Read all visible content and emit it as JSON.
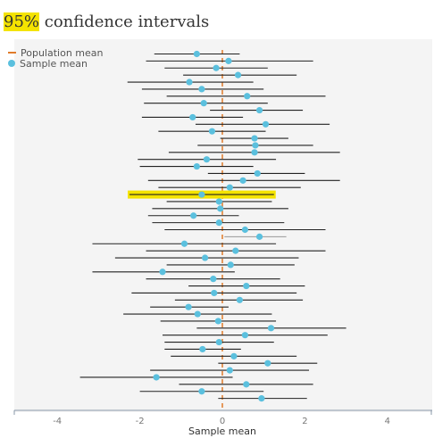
{
  "title": {
    "highlight": "95%",
    "rest": " confidence intervals"
  },
  "legend": {
    "population_mean": "Population mean",
    "sample_mean": "Sample mean"
  },
  "colors": {
    "population_mean": "#e07b2a",
    "sample_mean": "#5bc0de",
    "highlight": "#f4e300",
    "ci_covering": "#222222",
    "ci_missing": "#999999"
  },
  "chart_data": {
    "type": "scatter",
    "title": "95% confidence intervals",
    "xlabel": "Sample mean",
    "ylabel": "",
    "xlim": [
      -5,
      5
    ],
    "xticks": [
      -4,
      -2,
      0,
      2,
      4
    ],
    "population_mean": 0,
    "highlighted_sample": 20,
    "samples": [
      {
        "mean": -0.62,
        "lo": -1.65,
        "hi": 0.42
      },
      {
        "mean": 0.15,
        "lo": -1.85,
        "hi": 2.2
      },
      {
        "mean": -0.15,
        "lo": -1.4,
        "hi": 1.1
      },
      {
        "mean": 0.38,
        "lo": -0.95,
        "hi": 1.8
      },
      {
        "mean": -0.8,
        "lo": -2.3,
        "hi": 0.75
      },
      {
        "mean": -0.5,
        "lo": -1.95,
        "hi": 1.0
      },
      {
        "mean": 0.6,
        "lo": -1.35,
        "hi": 2.5
      },
      {
        "mean": -0.45,
        "lo": -1.9,
        "hi": 1.1
      },
      {
        "mean": 0.9,
        "lo": -0.3,
        "hi": 1.95
      },
      {
        "mean": -0.72,
        "lo": -1.95,
        "hi": 0.5
      },
      {
        "mean": 1.05,
        "lo": -0.65,
        "hi": 2.6
      },
      {
        "mean": -0.25,
        "lo": -1.55,
        "hi": 1.05
      },
      {
        "mean": 0.78,
        "lo": -0.05,
        "hi": 1.6
      },
      {
        "mean": 0.8,
        "lo": -0.6,
        "hi": 2.2
      },
      {
        "mean": 0.78,
        "lo": -1.3,
        "hi": 2.85
      },
      {
        "mean": -0.38,
        "lo": -2.05,
        "hi": 1.3
      },
      {
        "mean": -0.62,
        "lo": -2.0,
        "hi": 0.75
      },
      {
        "mean": 0.85,
        "lo": -0.35,
        "hi": 2.0
      },
      {
        "mean": 0.5,
        "lo": -1.8,
        "hi": 2.85
      },
      {
        "mean": 0.18,
        "lo": -1.55,
        "hi": 1.9
      },
      {
        "mean": -0.5,
        "lo": -2.25,
        "hi": 1.25
      },
      {
        "mean": -0.08,
        "lo": -1.35,
        "hi": 1.2
      },
      {
        "mean": -0.05,
        "lo": -1.7,
        "hi": 1.6
      },
      {
        "mean": -0.7,
        "lo": -1.8,
        "hi": 0.4
      },
      {
        "mean": -0.08,
        "lo": -1.7,
        "hi": 1.5
      },
      {
        "mean": 0.55,
        "lo": -1.4,
        "hi": 2.5
      },
      {
        "mean": 0.9,
        "lo": 0.05,
        "hi": 1.55
      },
      {
        "mean": -0.92,
        "lo": -3.15,
        "hi": 1.3
      },
      {
        "mean": 0.32,
        "lo": -1.85,
        "hi": 2.5
      },
      {
        "mean": -0.42,
        "lo": -2.6,
        "hi": 1.85
      },
      {
        "mean": 0.2,
        "lo": -1.35,
        "hi": 1.75
      },
      {
        "mean": -1.45,
        "lo": -3.15,
        "hi": 0.3
      },
      {
        "mean": -0.22,
        "lo": -1.85,
        "hi": 1.4
      },
      {
        "mean": 0.58,
        "lo": -0.82,
        "hi": 2.0
      },
      {
        "mean": -0.2,
        "lo": -2.2,
        "hi": 1.8
      },
      {
        "mean": 0.42,
        "lo": -1.15,
        "hi": 1.95
      },
      {
        "mean": -0.82,
        "lo": -1.75,
        "hi": 0.15
      },
      {
        "mean": -0.6,
        "lo": -2.4,
        "hi": 1.2
      },
      {
        "mean": -0.1,
        "lo": -1.5,
        "hi": 1.3
      },
      {
        "mean": 1.18,
        "lo": -0.62,
        "hi": 3.0
      },
      {
        "mean": 0.55,
        "lo": -1.45,
        "hi": 2.55
      },
      {
        "mean": -0.08,
        "lo": -1.4,
        "hi": 1.25
      },
      {
        "mean": -0.48,
        "lo": -1.4,
        "hi": 0.45
      },
      {
        "mean": 0.28,
        "lo": -1.25,
        "hi": 1.8
      },
      {
        "mean": 1.1,
        "lo": -0.1,
        "hi": 2.3
      },
      {
        "mean": 0.18,
        "lo": -1.75,
        "hi": 2.1
      },
      {
        "mean": -1.6,
        "lo": -3.45,
        "hi": 0.25
      },
      {
        "mean": 0.58,
        "lo": -1.05,
        "hi": 2.2
      },
      {
        "mean": -0.5,
        "lo": -2.0,
        "hi": 1.0
      },
      {
        "mean": 0.95,
        "lo": -0.1,
        "hi": 2.05
      }
    ]
  }
}
